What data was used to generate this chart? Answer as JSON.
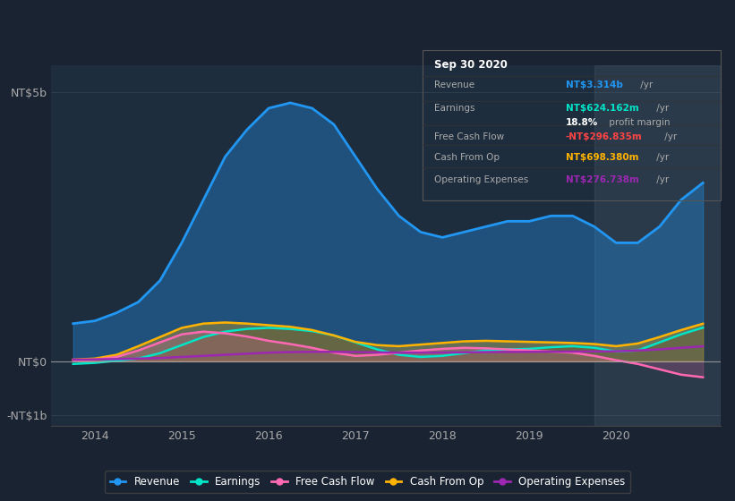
{
  "bg_color": "#1a2332",
  "plot_bg_color": "#1e2d3d",
  "ylabel_5b": "NT$5b",
  "ylabel_0": "NT$0",
  "ylabel_neg1b": "-NT$1b",
  "xlim": [
    2013.5,
    2021.2
  ],
  "ylim": [
    -1200000000.0,
    5500000000.0
  ],
  "xticks": [
    2014,
    2015,
    2016,
    2017,
    2018,
    2019,
    2020
  ],
  "colors": {
    "revenue": "#2196f3",
    "earnings": "#00e5c8",
    "free_cash_flow": "#ff69b4",
    "cash_from_op": "#ffb300",
    "operating_expenses": "#9c27b0"
  },
  "revenue": {
    "x": [
      2013.75,
      2014.0,
      2014.25,
      2014.5,
      2014.75,
      2015.0,
      2015.25,
      2015.5,
      2015.75,
      2016.0,
      2016.25,
      2016.5,
      2016.75,
      2017.0,
      2017.25,
      2017.5,
      2017.75,
      2018.0,
      2018.25,
      2018.5,
      2018.75,
      2019.0,
      2019.25,
      2019.5,
      2019.75,
      2020.0,
      2020.25,
      2020.5,
      2020.75,
      2021.0
    ],
    "y": [
      700000000,
      750000000,
      900000000,
      1100000000,
      1500000000,
      2200000000,
      3000000000,
      3800000000,
      4300000000,
      4700000000,
      4800000000,
      4700000000,
      4400000000,
      3800000000,
      3200000000,
      2700000000,
      2400000000,
      2300000000,
      2400000000,
      2500000000,
      2600000000,
      2600000000,
      2700000000,
      2700000000,
      2500000000,
      2200000000,
      2200000000,
      2500000000,
      3000000000,
      3314000000
    ]
  },
  "earnings": {
    "x": [
      2013.75,
      2014.0,
      2014.25,
      2014.5,
      2014.75,
      2015.0,
      2015.25,
      2015.5,
      2015.75,
      2016.0,
      2016.25,
      2016.5,
      2016.75,
      2017.0,
      2017.25,
      2017.5,
      2017.75,
      2018.0,
      2018.25,
      2018.5,
      2018.75,
      2019.0,
      2019.25,
      2019.5,
      2019.75,
      2020.0,
      2020.25,
      2020.5,
      2020.75,
      2021.0
    ],
    "y": [
      -50000000,
      -30000000,
      10000000,
      50000000,
      150000000,
      300000000,
      450000000,
      550000000,
      600000000,
      620000000,
      600000000,
      560000000,
      480000000,
      350000000,
      220000000,
      120000000,
      80000000,
      100000000,
      150000000,
      200000000,
      220000000,
      230000000,
      260000000,
      280000000,
      250000000,
      180000000,
      200000000,
      350000000,
      500000000,
      624000000
    ]
  },
  "free_cash_flow": {
    "x": [
      2013.75,
      2014.0,
      2014.25,
      2014.5,
      2014.75,
      2015.0,
      2015.25,
      2015.5,
      2015.75,
      2016.0,
      2016.25,
      2016.5,
      2016.75,
      2017.0,
      2017.25,
      2017.5,
      2017.75,
      2018.0,
      2018.25,
      2018.5,
      2018.75,
      2019.0,
      2019.25,
      2019.5,
      2019.75,
      2020.0,
      2020.25,
      2020.5,
      2020.75,
      2021.0
    ],
    "y": [
      20000000,
      30000000,
      80000000,
      200000000,
      350000000,
      500000000,
      550000000,
      520000000,
      460000000,
      380000000,
      320000000,
      250000000,
      160000000,
      100000000,
      120000000,
      160000000,
      200000000,
      230000000,
      250000000,
      240000000,
      220000000,
      200000000,
      180000000,
      160000000,
      100000000,
      20000000,
      -50000000,
      -150000000,
      -250000000,
      -297000000
    ]
  },
  "cash_from_op": {
    "x": [
      2013.75,
      2014.0,
      2014.25,
      2014.5,
      2014.75,
      2015.0,
      2015.25,
      2015.5,
      2015.75,
      2016.0,
      2016.25,
      2016.5,
      2016.75,
      2017.0,
      2017.25,
      2017.5,
      2017.75,
      2018.0,
      2018.25,
      2018.5,
      2018.75,
      2019.0,
      2019.25,
      2019.5,
      2019.75,
      2020.0,
      2020.25,
      2020.5,
      2020.75,
      2021.0
    ],
    "y": [
      30000000,
      50000000,
      120000000,
      280000000,
      450000000,
      620000000,
      700000000,
      720000000,
      700000000,
      670000000,
      640000000,
      580000000,
      480000000,
      360000000,
      300000000,
      280000000,
      310000000,
      340000000,
      370000000,
      380000000,
      370000000,
      360000000,
      350000000,
      340000000,
      320000000,
      280000000,
      330000000,
      450000000,
      580000000,
      698000000
    ]
  },
  "operating_expenses": {
    "x": [
      2013.75,
      2014.0,
      2014.25,
      2014.5,
      2014.75,
      2015.0,
      2015.25,
      2015.5,
      2015.75,
      2016.0,
      2016.25,
      2016.5,
      2016.75,
      2017.0,
      2017.25,
      2017.5,
      2017.75,
      2018.0,
      2018.25,
      2018.5,
      2018.75,
      2019.0,
      2019.25,
      2019.5,
      2019.75,
      2020.0,
      2020.25,
      2020.5,
      2020.75,
      2021.0
    ],
    "y": [
      30000000,
      35000000,
      40000000,
      50000000,
      60000000,
      80000000,
      100000000,
      120000000,
      140000000,
      160000000,
      170000000,
      175000000,
      175000000,
      170000000,
      165000000,
      160000000,
      160000000,
      162000000,
      165000000,
      170000000,
      172000000,
      175000000,
      178000000,
      180000000,
      182000000,
      185000000,
      200000000,
      220000000,
      250000000,
      277000000
    ]
  },
  "info_box": {
    "title": "Sep 30 2020",
    "rows": [
      {
        "label": "Revenue",
        "value": "NT$3.314b",
        "value_color": "#2196f3",
        "suffix": " /yr"
      },
      {
        "label": "Earnings",
        "value": "NT$624.162m",
        "value_color": "#00e5c8",
        "suffix": " /yr"
      },
      {
        "label": "",
        "value": "18.8%",
        "value_color": "#ffffff",
        "suffix": " profit margin"
      },
      {
        "label": "Free Cash Flow",
        "value": "-NT$296.835m",
        "value_color": "#ff4444",
        "suffix": " /yr"
      },
      {
        "label": "Cash From Op",
        "value": "NT$698.380m",
        "value_color": "#ffb300",
        "suffix": " /yr"
      },
      {
        "label": "Operating Expenses",
        "value": "NT$276.738m",
        "value_color": "#9c27b0",
        "suffix": " /yr"
      }
    ]
  },
  "highlighted_region": [
    2019.75,
    2021.2
  ],
  "legend_items": [
    {
      "label": "Revenue",
      "color": "#2196f3"
    },
    {
      "label": "Earnings",
      "color": "#00e5c8"
    },
    {
      "label": "Free Cash Flow",
      "color": "#ff69b4"
    },
    {
      "label": "Cash From Op",
      "color": "#ffb300"
    },
    {
      "label": "Operating Expenses",
      "color": "#9c27b0"
    }
  ]
}
